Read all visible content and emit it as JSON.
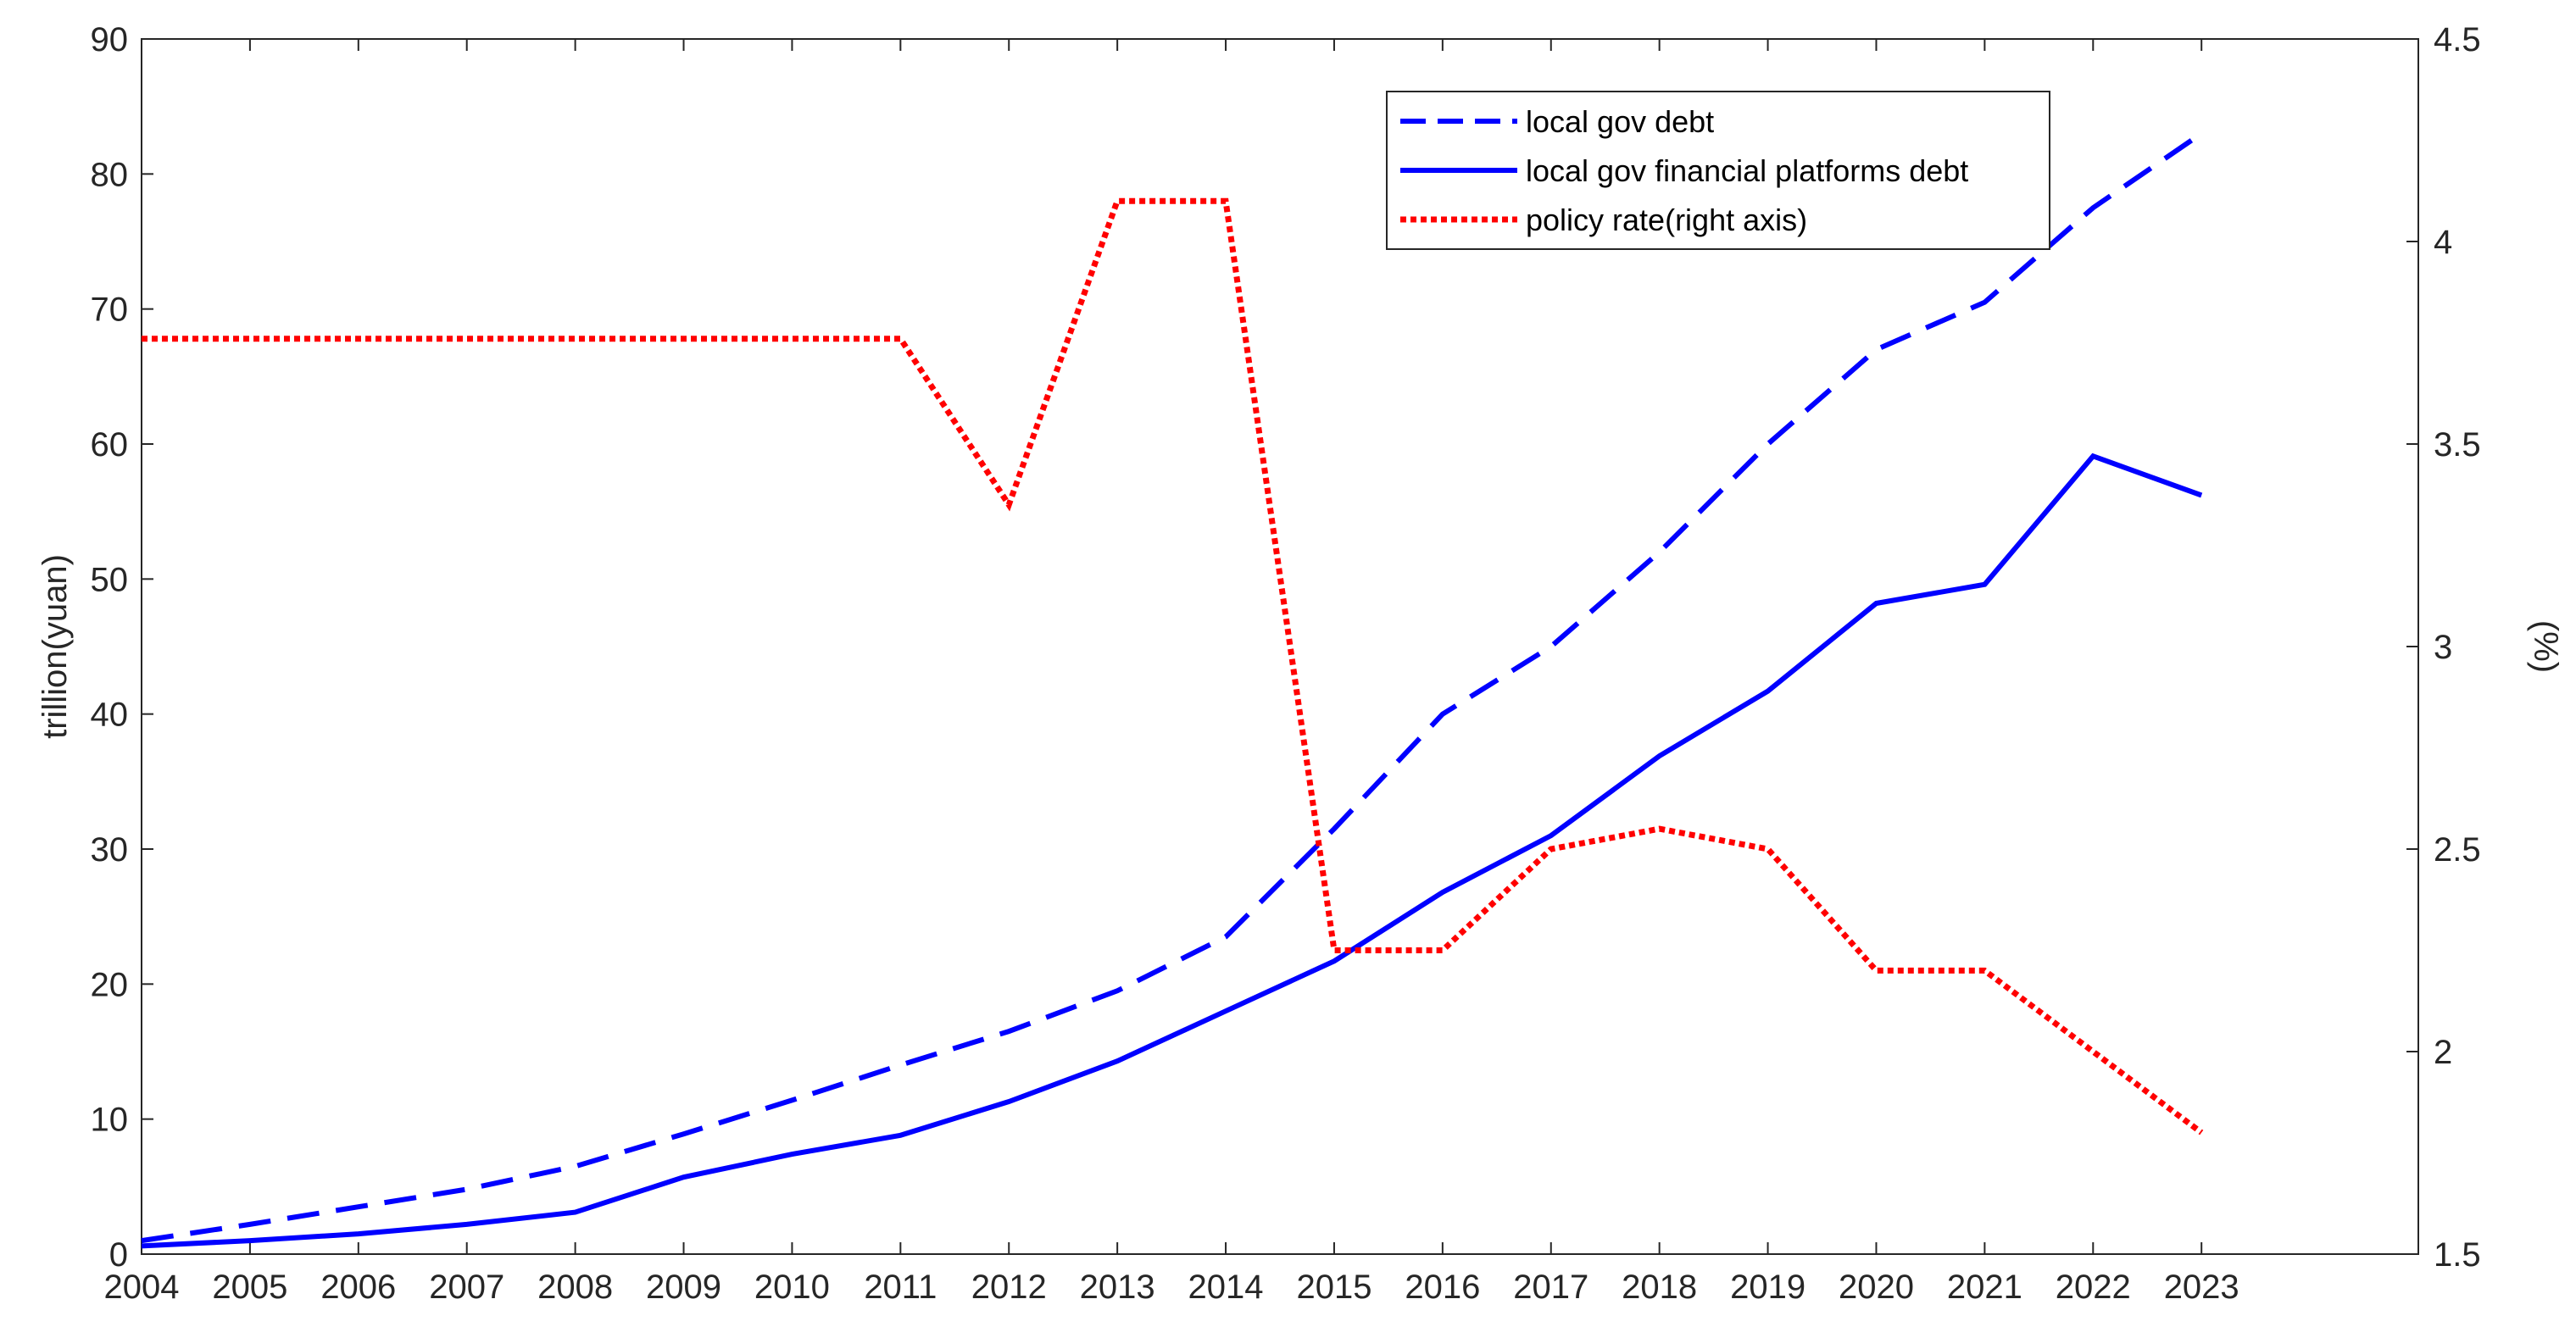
{
  "chart_data": {
    "type": "line",
    "x": [
      2004,
      2005,
      2006,
      2007,
      2008,
      2009,
      2010,
      2011,
      2012,
      2013,
      2014,
      2015,
      2016,
      2017,
      2018,
      2019,
      2020,
      2021,
      2022,
      2023
    ],
    "xlim": [
      2004,
      2025
    ],
    "x_ticks": [
      "2004",
      "2005",
      "2006",
      "2007",
      "2008",
      "2009",
      "2010",
      "2011",
      "2012",
      "2013",
      "2014",
      "2015",
      "2016",
      "2017",
      "2018",
      "2019",
      "2020",
      "2021",
      "2022",
      "2023"
    ],
    "ylabel": "trillion(yuan)",
    "ylim": [
      0,
      90
    ],
    "y_ticks": [
      "0",
      "10",
      "20",
      "30",
      "40",
      "50",
      "60",
      "70",
      "80",
      "90"
    ],
    "y2label": "(%)",
    "y2lim": [
      1.5,
      4.5
    ],
    "y2_ticks": [
      "1.5",
      "2",
      "2.5",
      "3",
      "3.5",
      "4",
      "4.5"
    ],
    "legend_position": "top-right",
    "series": [
      {
        "name": "local gov debt",
        "axis": "left",
        "style": "dashed",
        "color": "#0000ff",
        "values": [
          1.0,
          2.2,
          3.5,
          4.8,
          6.5,
          8.9,
          11.4,
          14.0,
          16.5,
          19.5,
          23.5,
          31.5,
          40.0,
          45.0,
          52.0,
          60.0,
          67.0,
          70.5,
          77.5,
          83.0
        ]
      },
      {
        "name": "local gov financial platforms debt",
        "axis": "left",
        "style": "solid",
        "color": "#0000ff",
        "values": [
          0.6,
          1.0,
          1.5,
          2.2,
          3.1,
          5.7,
          7.4,
          8.8,
          11.3,
          14.3,
          18.0,
          21.7,
          26.8,
          31.0,
          36.9,
          41.7,
          48.2,
          49.6,
          59.1,
          56.2
        ]
      },
      {
        "name": "policy rate(right axis)",
        "axis": "right",
        "style": "dotted",
        "color": "#ff0000",
        "values": [
          3.76,
          3.76,
          3.76,
          3.76,
          3.76,
          3.76,
          3.76,
          3.76,
          3.35,
          4.1,
          4.1,
          2.25,
          2.25,
          2.5,
          2.55,
          2.5,
          2.2,
          2.2,
          2.0,
          1.8
        ]
      }
    ]
  }
}
